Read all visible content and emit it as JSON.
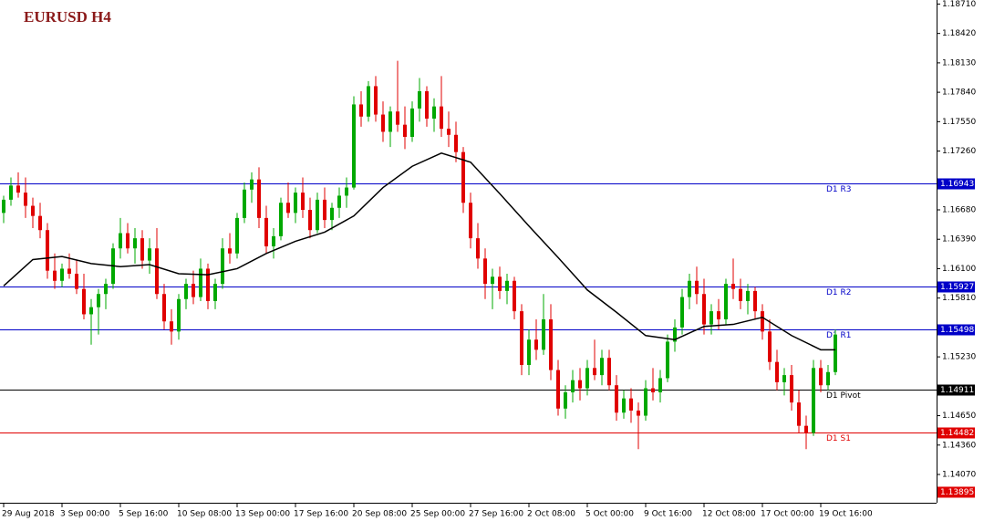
{
  "chart_data": {
    "type": "candlestick",
    "title": "EURUSD H4",
    "ylim": [
      1.138,
      1.1875
    ],
    "yticks": [
      {
        "value": 1.1871,
        "label": "1.18710"
      },
      {
        "value": 1.1842,
        "label": "1.18420"
      },
      {
        "value": 1.1813,
        "label": "1.18130"
      },
      {
        "value": 1.1784,
        "label": "1.17840"
      },
      {
        "value": 1.1755,
        "label": "1.17550"
      },
      {
        "value": 1.1726,
        "label": "1.17260"
      },
      {
        "value": 1.1668,
        "label": "1.16680"
      },
      {
        "value": 1.1639,
        "label": "1.16390"
      },
      {
        "value": 1.161,
        "label": "1.16100"
      },
      {
        "value": 1.1581,
        "label": "1.15810"
      },
      {
        "value": 1.1523,
        "label": "1.15230"
      },
      {
        "value": 1.1465,
        "label": "1.14650"
      },
      {
        "value": 1.1436,
        "label": "1.14360"
      },
      {
        "value": 1.1407,
        "label": "1.14070"
      }
    ],
    "xticks": [
      {
        "value": 0,
        "label": "29 Aug 2018"
      },
      {
        "value": 8,
        "label": "3 Sep 00:00"
      },
      {
        "value": 16,
        "label": "5 Sep 16:00"
      },
      {
        "value": 24,
        "label": "10 Sep 08:00"
      },
      {
        "value": 32,
        "label": "13 Sep 00:00"
      },
      {
        "value": 40,
        "label": "17 Sep 16:00"
      },
      {
        "value": 48,
        "label": "20 Sep 08:00"
      },
      {
        "value": 56,
        "label": "25 Sep 00:00"
      },
      {
        "value": 64,
        "label": "27 Sep 16:00"
      },
      {
        "value": 72,
        "label": "2 Oct 08:00"
      },
      {
        "value": 80,
        "label": "5 Oct 00:00"
      },
      {
        "value": 88,
        "label": "9 Oct 16:00"
      },
      {
        "value": 96,
        "label": "12 Oct 08:00"
      },
      {
        "value": 104,
        "label": "17 Oct 00:00"
      },
      {
        "value": 112,
        "label": "19 Oct 16:00"
      }
    ],
    "up_color": "#00a800",
    "down_color": "#e00000",
    "ohlc": [
      [
        1.1665,
        1.1682,
        1.1655,
        1.1678
      ],
      [
        1.1678,
        1.17,
        1.1672,
        1.1692
      ],
      [
        1.1692,
        1.1705,
        1.168,
        1.1685
      ],
      [
        1.1685,
        1.17,
        1.166,
        1.1672
      ],
      [
        1.1672,
        1.168,
        1.165,
        1.1662
      ],
      [
        1.1662,
        1.1675,
        1.164,
        1.1648
      ],
      [
        1.1648,
        1.1655,
        1.16,
        1.1608
      ],
      [
        1.1608,
        1.1625,
        1.159,
        1.1598
      ],
      [
        1.1598,
        1.1615,
        1.1592,
        1.161
      ],
      [
        1.161,
        1.1625,
        1.16,
        1.1605
      ],
      [
        1.1605,
        1.1618,
        1.1585,
        1.159
      ],
      [
        1.159,
        1.1605,
        1.156,
        1.1565
      ],
      [
        1.1565,
        1.158,
        1.1535,
        1.1572
      ],
      [
        1.1572,
        1.159,
        1.1545,
        1.1585
      ],
      [
        1.1585,
        1.16,
        1.157,
        1.1595
      ],
      [
        1.1595,
        1.1635,
        1.159,
        1.163
      ],
      [
        1.163,
        1.166,
        1.162,
        1.1645
      ],
      [
        1.1645,
        1.1655,
        1.1625,
        1.163
      ],
      [
        1.163,
        1.165,
        1.1615,
        1.164
      ],
      [
        1.164,
        1.1648,
        1.161,
        1.1618
      ],
      [
        1.1618,
        1.164,
        1.1605,
        1.163
      ],
      [
        1.163,
        1.165,
        1.158,
        1.1585
      ],
      [
        1.1585,
        1.1595,
        1.155,
        1.1558
      ],
      [
        1.1558,
        1.157,
        1.1535,
        1.1548
      ],
      [
        1.1548,
        1.1585,
        1.154,
        1.158
      ],
      [
        1.158,
        1.16,
        1.157,
        1.1595
      ],
      [
        1.1595,
        1.1608,
        1.1575,
        1.1582
      ],
      [
        1.1582,
        1.162,
        1.1578,
        1.161
      ],
      [
        1.161,
        1.1615,
        1.157,
        1.1578
      ],
      [
        1.1578,
        1.16,
        1.157,
        1.1595
      ],
      [
        1.1595,
        1.164,
        1.159,
        1.163
      ],
      [
        1.163,
        1.1645,
        1.1615,
        1.1625
      ],
      [
        1.1625,
        1.1665,
        1.162,
        1.166
      ],
      [
        1.166,
        1.1695,
        1.1655,
        1.1688
      ],
      [
        1.1688,
        1.1705,
        1.1675,
        1.1698
      ],
      [
        1.1698,
        1.171,
        1.165,
        1.166
      ],
      [
        1.166,
        1.1672,
        1.1625,
        1.1632
      ],
      [
        1.1632,
        1.165,
        1.162,
        1.1642
      ],
      [
        1.1642,
        1.168,
        1.1638,
        1.1675
      ],
      [
        1.1675,
        1.1695,
        1.166,
        1.1665
      ],
      [
        1.1665,
        1.169,
        1.1655,
        1.1685
      ],
      [
        1.1685,
        1.17,
        1.166,
        1.1668
      ],
      [
        1.1668,
        1.168,
        1.164,
        1.1648
      ],
      [
        1.1648,
        1.1685,
        1.1645,
        1.1678
      ],
      [
        1.1678,
        1.169,
        1.165,
        1.1658
      ],
      [
        1.1658,
        1.1675,
        1.1648,
        1.167
      ],
      [
        1.167,
        1.169,
        1.166,
        1.1682
      ],
      [
        1.1682,
        1.17,
        1.167,
        1.169
      ],
      [
        1.169,
        1.178,
        1.1688,
        1.1772
      ],
      [
        1.1772,
        1.1785,
        1.175,
        1.176
      ],
      [
        1.176,
        1.1795,
        1.1755,
        1.179
      ],
      [
        1.179,
        1.18,
        1.1755,
        1.1762
      ],
      [
        1.1762,
        1.1775,
        1.1735,
        1.1745
      ],
      [
        1.1745,
        1.177,
        1.173,
        1.1765
      ],
      [
        1.1765,
        1.1815,
        1.1745,
        1.1752
      ],
      [
        1.1752,
        1.177,
        1.1728,
        1.174
      ],
      [
        1.174,
        1.1775,
        1.1735,
        1.1768
      ],
      [
        1.1768,
        1.1798,
        1.1755,
        1.1785
      ],
      [
        1.1785,
        1.179,
        1.175,
        1.1758
      ],
      [
        1.1758,
        1.1778,
        1.1745,
        1.177
      ],
      [
        1.177,
        1.18,
        1.174,
        1.1748
      ],
      [
        1.1748,
        1.1765,
        1.173,
        1.1742
      ],
      [
        1.1742,
        1.1755,
        1.1715,
        1.1725
      ],
      [
        1.1725,
        1.173,
        1.1665,
        1.1675
      ],
      [
        1.1675,
        1.1685,
        1.163,
        1.164
      ],
      [
        1.164,
        1.1655,
        1.161,
        1.162
      ],
      [
        1.162,
        1.163,
        1.158,
        1.1595
      ],
      [
        1.1595,
        1.161,
        1.157,
        1.1602
      ],
      [
        1.1602,
        1.1612,
        1.158,
        1.1588
      ],
      [
        1.1588,
        1.1605,
        1.1575,
        1.1598
      ],
      [
        1.1598,
        1.1602,
        1.156,
        1.1568
      ],
      [
        1.1568,
        1.1575,
        1.1505,
        1.1515
      ],
      [
        1.1515,
        1.155,
        1.1505,
        1.154
      ],
      [
        1.154,
        1.156,
        1.152,
        1.153
      ],
      [
        1.153,
        1.1585,
        1.1525,
        1.156
      ],
      [
        1.156,
        1.1575,
        1.15,
        1.151
      ],
      [
        1.151,
        1.152,
        1.1465,
        1.1472
      ],
      [
        1.1472,
        1.1495,
        1.1462,
        1.1488
      ],
      [
        1.1488,
        1.151,
        1.1478,
        1.15
      ],
      [
        1.15,
        1.1512,
        1.148,
        1.1492
      ],
      [
        1.1492,
        1.152,
        1.1485,
        1.1512
      ],
      [
        1.1512,
        1.154,
        1.15,
        1.1505
      ],
      [
        1.1505,
        1.153,
        1.1495,
        1.1522
      ],
      [
        1.1522,
        1.153,
        1.149,
        1.1495
      ],
      [
        1.1495,
        1.1505,
        1.146,
        1.1468
      ],
      [
        1.1468,
        1.149,
        1.1462,
        1.1482
      ],
      [
        1.1482,
        1.1492,
        1.1458,
        1.147
      ],
      [
        1.147,
        1.1478,
        1.1432,
        1.1465
      ],
      [
        1.1465,
        1.15,
        1.146,
        1.1492
      ],
      [
        1.1492,
        1.1512,
        1.148,
        1.1488
      ],
      [
        1.1488,
        1.151,
        1.1478,
        1.1502
      ],
      [
        1.1502,
        1.1545,
        1.1498,
        1.1538
      ],
      [
        1.1538,
        1.156,
        1.1528,
        1.1552
      ],
      [
        1.1552,
        1.159,
        1.1545,
        1.1582
      ],
      [
        1.1582,
        1.1605,
        1.157,
        1.1598
      ],
      [
        1.1598,
        1.1612,
        1.1575,
        1.1585
      ],
      [
        1.1585,
        1.16,
        1.1545,
        1.1555
      ],
      [
        1.1555,
        1.1575,
        1.1545,
        1.1568
      ],
      [
        1.1568,
        1.158,
        1.155,
        1.156
      ],
      [
        1.156,
        1.16,
        1.1555,
        1.1595
      ],
      [
        1.1595,
        1.162,
        1.158,
        1.159
      ],
      [
        1.159,
        1.16,
        1.157,
        1.1578
      ],
      [
        1.1578,
        1.1595,
        1.1565,
        1.1588
      ],
      [
        1.1588,
        1.1592,
        1.156,
        1.1568
      ],
      [
        1.1568,
        1.1575,
        1.154,
        1.1548
      ],
      [
        1.1548,
        1.156,
        1.151,
        1.1518
      ],
      [
        1.1518,
        1.153,
        1.149,
        1.1498
      ],
      [
        1.1498,
        1.1512,
        1.1485,
        1.1505
      ],
      [
        1.1505,
        1.1515,
        1.147,
        1.1478
      ],
      [
        1.1478,
        1.149,
        1.1448,
        1.1455
      ],
      [
        1.1455,
        1.1465,
        1.1432,
        1.1448
      ],
      [
        1.1448,
        1.152,
        1.1445,
        1.1512
      ],
      [
        1.1512,
        1.152,
        1.1488,
        1.1495
      ],
      [
        1.1495,
        1.1515,
        1.149,
        1.1508
      ],
      [
        1.1508,
        1.155,
        1.1505,
        1.1545
      ]
    ],
    "ma": {
      "color": "#000000",
      "x": [
        0,
        4,
        8,
        12,
        16,
        20,
        24,
        28,
        32,
        36,
        40,
        44,
        48,
        52,
        56,
        60,
        64,
        68,
        72,
        76,
        80,
        84,
        88,
        92,
        96,
        100,
        104,
        108,
        112,
        114
      ],
      "values": [
        1.1593,
        1.1619,
        1.1622,
        1.1615,
        1.1612,
        1.1614,
        1.1605,
        1.1604,
        1.161,
        1.1625,
        1.1637,
        1.1646,
        1.1662,
        1.169,
        1.1711,
        1.1724,
        1.1715,
        1.1684,
        1.1652,
        1.1621,
        1.1589,
        1.1567,
        1.1544,
        1.154,
        1.1553,
        1.1555,
        1.1562,
        1.1544,
        1.153,
        1.153
      ]
    },
    "levels": [
      {
        "name": "D1 R3",
        "value": 1.16943,
        "color": "#0000c8"
      },
      {
        "name": "D1 R2",
        "value": 1.15927,
        "color": "#0000c8"
      },
      {
        "name": "D1 R1",
        "value": 1.15498,
        "color": "#0000c8"
      },
      {
        "name": "D1 Pivot",
        "value": 1.14911,
        "color": "#000000"
      },
      {
        "name": "D1 S1",
        "value": 1.14482,
        "color": "#e00000"
      }
    ],
    "price_markers": [
      {
        "value": 1.13895,
        "color": "#e00000"
      }
    ]
  }
}
